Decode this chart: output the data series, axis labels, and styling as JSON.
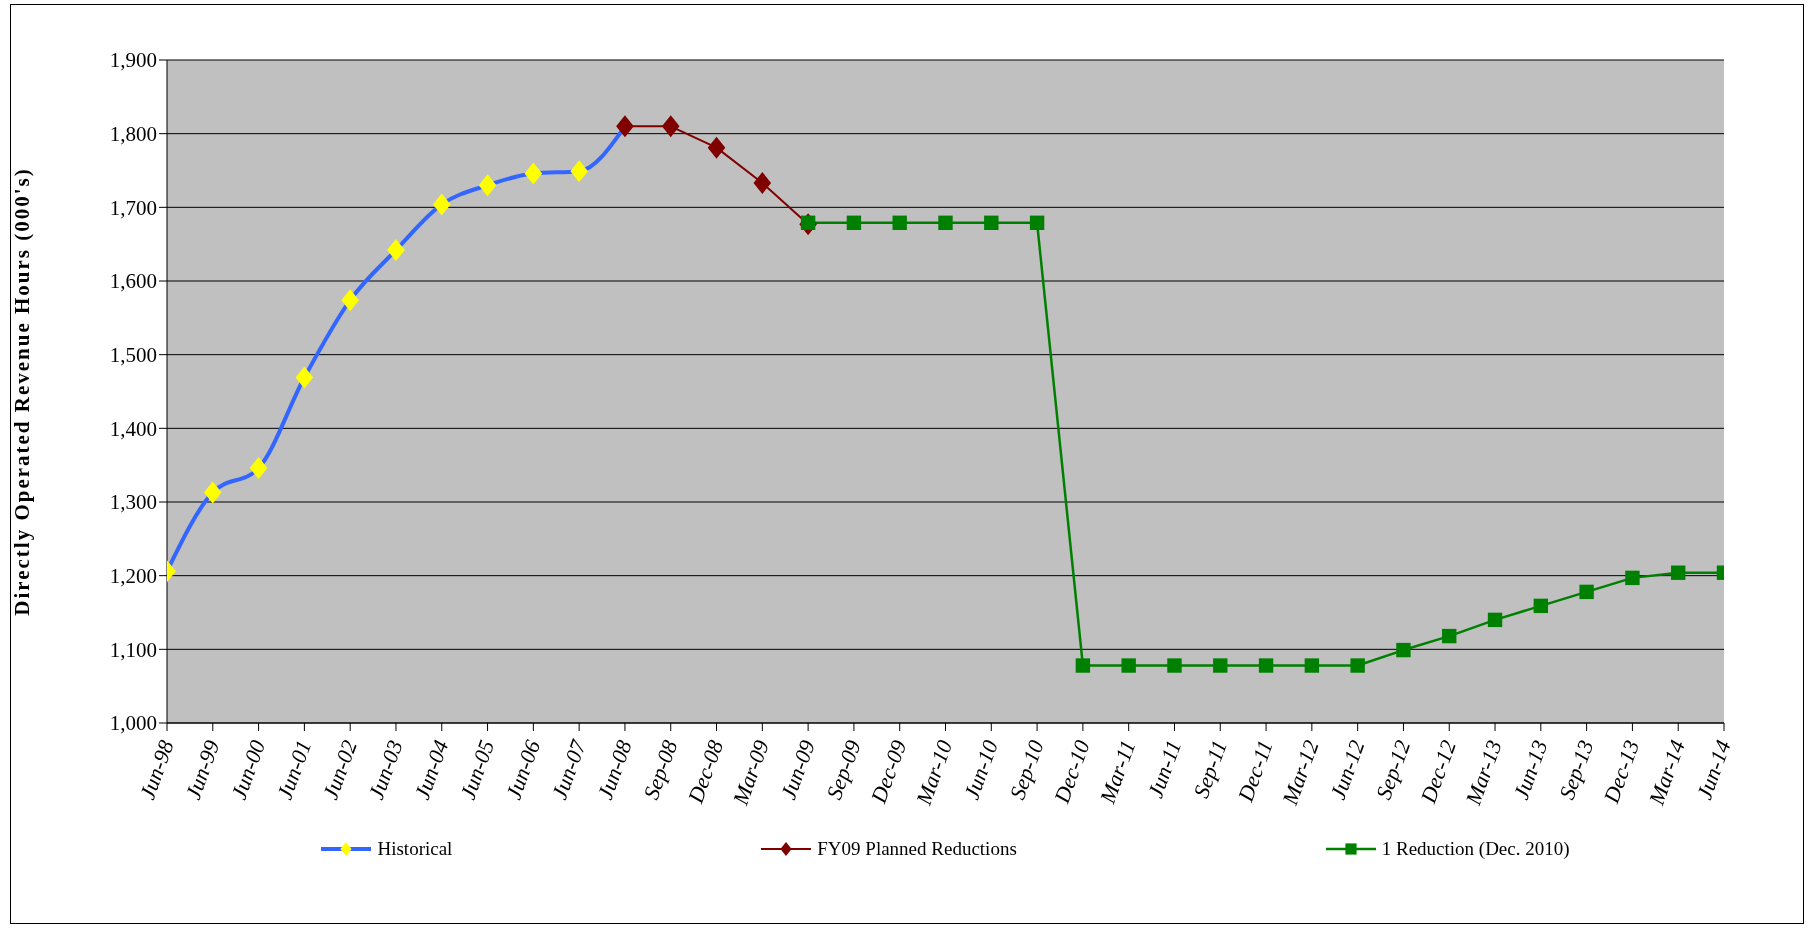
{
  "chart_data": {
    "type": "line",
    "ylabel": "Directly Operated Revenue Hours (000's)",
    "categories": [
      "Jun-98",
      "Jun-99",
      "Jun-00",
      "Jun-01",
      "Jun-02",
      "Jun-03",
      "Jun-04",
      "Jun-05",
      "Jun-06",
      "Jun-07",
      "Jun-08",
      "Sep-08",
      "Dec-08",
      "Mar-09",
      "Jun-09",
      "Sep-09",
      "Dec-09",
      "Mar-10",
      "Jun-10",
      "Sep-10",
      "Dec-10",
      "Mar-11",
      "Jun-11",
      "Sep-11",
      "Dec-11",
      "Mar-12",
      "Jun-12",
      "Sep-12",
      "Dec-12",
      "Mar-13",
      "Jun-13",
      "Sep-13",
      "Dec-13",
      "Mar-14",
      "Jun-14"
    ],
    "ylim": [
      1000,
      1900
    ],
    "yticks": [
      {
        "value": 1000,
        "label": "1,000"
      },
      {
        "value": 1100,
        "label": "1,100"
      },
      {
        "value": 1200,
        "label": "1,200"
      },
      {
        "value": 1300,
        "label": "1,300"
      },
      {
        "value": 1400,
        "label": "1,400"
      },
      {
        "value": 1500,
        "label": "1,500"
      },
      {
        "value": 1600,
        "label": "1,600"
      },
      {
        "value": 1700,
        "label": "1,700"
      },
      {
        "value": 1800,
        "label": "1,800"
      },
      {
        "value": 1900,
        "label": "1,900"
      }
    ],
    "grid": "y",
    "legend": "bottom",
    "series": [
      {
        "name": "Historical",
        "color": "#3366ff",
        "marker": "diamond",
        "colors": [
          "#ffff00",
          "#ffff00",
          "#ffff00",
          "#ffff00",
          "#ffff00",
          "#ffff00",
          "#ffff00",
          "#ffff00",
          "#ffff00",
          "#ffff00",
          null,
          null,
          null,
          null,
          null,
          null,
          null,
          null,
          null,
          null,
          null,
          null,
          null,
          null,
          null,
          null,
          null,
          null,
          null,
          null,
          null,
          null,
          null,
          null,
          null
        ],
        "values": [
          1206,
          1313,
          1346,
          1469,
          1574,
          1642,
          1704,
          1730,
          1746,
          1749,
          1810,
          null,
          null,
          null,
          null,
          null,
          null,
          null,
          null,
          null,
          null,
          null,
          null,
          null,
          null,
          null,
          null,
          null,
          null,
          null,
          null,
          null,
          null,
          null,
          null
        ]
      },
      {
        "name": "FY09 Planned Reductions",
        "color": "#800000",
        "marker": "diamond",
        "values": [
          null,
          null,
          null,
          null,
          null,
          null,
          null,
          null,
          null,
          null,
          1810,
          1810,
          1781,
          1733,
          1677,
          null,
          null,
          null,
          null,
          null,
          null,
          null,
          null,
          null,
          null,
          null,
          null,
          null,
          null,
          null,
          null,
          null,
          null,
          null,
          null
        ]
      },
      {
        "name": "1 Reduction (Dec. 2010)",
        "color": "#008000",
        "marker": "square",
        "values": [
          null,
          null,
          null,
          null,
          null,
          null,
          null,
          null,
          null,
          null,
          null,
          null,
          null,
          null,
          1679,
          1679,
          1679,
          1679,
          1679,
          1679,
          1078,
          1078,
          1078,
          1078,
          1078,
          1078,
          1078,
          1099,
          1118,
          1140,
          1159,
          1178,
          1197,
          1204,
          1204
        ]
      }
    ]
  }
}
